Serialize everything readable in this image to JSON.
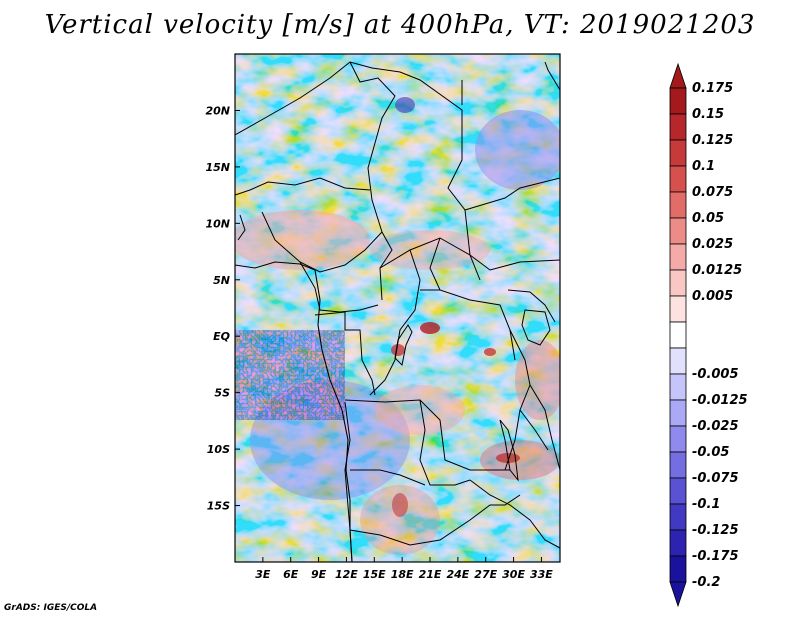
{
  "title": "Vertical velocity [m/s] at 400hPa, VT: 2019021203",
  "credit": "GrADS: IGES/COLA",
  "map": {
    "lon_range": [
      0,
      35
    ],
    "lat_range": [
      -20,
      25
    ],
    "x_ticks": [
      {
        "lon": 3,
        "label": "3E"
      },
      {
        "lon": 6,
        "label": "6E"
      },
      {
        "lon": 9,
        "label": "9E"
      },
      {
        "lon": 12,
        "label": "12E"
      },
      {
        "lon": 15,
        "label": "15E"
      },
      {
        "lon": 18,
        "label": "18E"
      },
      {
        "lon": 21,
        "label": "21E"
      },
      {
        "lon": 24,
        "label": "24E"
      },
      {
        "lon": 27,
        "label": "27E"
      },
      {
        "lon": 30,
        "label": "30E"
      },
      {
        "lon": 33,
        "label": "33E"
      }
    ],
    "y_ticks": [
      {
        "lat": 20,
        "label": "20N"
      },
      {
        "lat": 15,
        "label": "15N"
      },
      {
        "lat": 10,
        "label": "10N"
      },
      {
        "lat": 5,
        "label": "5N"
      },
      {
        "lat": 0,
        "label": "EQ"
      },
      {
        "lat": -5,
        "label": "5S"
      },
      {
        "lat": -10,
        "label": "10S"
      },
      {
        "lat": -15,
        "label": "15S"
      }
    ]
  },
  "colorbar": {
    "levels": [
      {
        "label": "0.175",
        "color": "#a3191c"
      },
      {
        "label": "0.15",
        "color": "#b5272a"
      },
      {
        "label": "0.125",
        "color": "#c63a3a"
      },
      {
        "label": "0.1",
        "color": "#d6514d"
      },
      {
        "label": "0.075",
        "color": "#e26d68"
      },
      {
        "label": "0.05",
        "color": "#ec8c87"
      },
      {
        "label": "0.025",
        "color": "#f4aaa6"
      },
      {
        "label": "0.0125",
        "color": "#f9c8c5"
      },
      {
        "label": "0.005",
        "color": "#fce3e1"
      },
      {
        "label": "",
        "color": "#ffffff"
      },
      {
        "label": "-0.005",
        "color": "#e1e1fc"
      },
      {
        "label": "-0.0125",
        "color": "#c6c5fa"
      },
      {
        "label": "-0.025",
        "color": "#aba8f5"
      },
      {
        "label": "-0.05",
        "color": "#8f8aec"
      },
      {
        "label": "-0.075",
        "color": "#746ee0"
      },
      {
        "label": "-0.1",
        "color": "#5a52d2"
      },
      {
        "label": "-0.125",
        "color": "#4239c2"
      },
      {
        "label": "-0.175",
        "color": "#2c23b0"
      },
      {
        "label": "-0.2",
        "color": "#1a129c"
      }
    ],
    "top_arrow_color": "#a3191c",
    "bottom_arrow_color": "#1a129c"
  }
}
